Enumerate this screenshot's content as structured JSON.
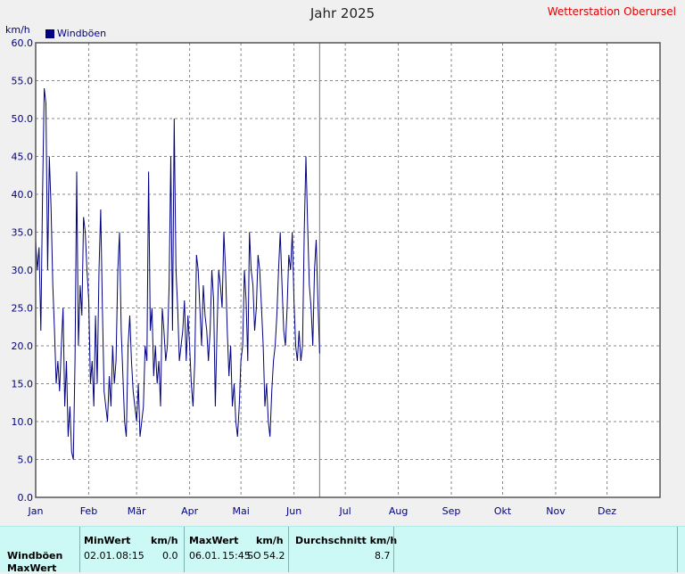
{
  "header": {
    "title": "Jahr 2025",
    "station": "Wetterstation Oberursel",
    "unit": "km/h"
  },
  "legend": {
    "label": "Windböen",
    "color": "#000080"
  },
  "chart_data": {
    "type": "line",
    "title": "Jahr 2025",
    "ylabel": "km/h",
    "ylim": [
      0,
      60
    ],
    "yticks": [
      "0.0",
      "5.0",
      "10.0",
      "15.0",
      "20.0",
      "25.0",
      "30.0",
      "35.0",
      "40.0",
      "45.0",
      "50.0",
      "55.0",
      "60.0"
    ],
    "months": [
      "Jan",
      "Feb",
      "Mär",
      "Apr",
      "Mai",
      "Jun",
      "Jul",
      "Aug",
      "Sep",
      "Okt",
      "Nov",
      "Dez"
    ],
    "grid": true,
    "current_day": 167,
    "series": [
      {
        "name": "Windböen",
        "color": "#000080",
        "x": [
          1,
          2,
          3,
          4,
          5,
          6,
          7,
          8,
          9,
          10,
          11,
          12,
          13,
          14,
          15,
          16,
          17,
          18,
          19,
          20,
          21,
          22,
          23,
          24,
          25,
          26,
          27,
          28,
          29,
          30,
          31,
          32,
          33,
          34,
          35,
          36,
          37,
          38,
          39,
          40,
          41,
          42,
          43,
          44,
          45,
          46,
          47,
          48,
          49,
          50,
          51,
          52,
          53,
          54,
          55,
          56,
          57,
          58,
          59,
          60,
          61,
          62,
          63,
          64,
          65,
          66,
          67,
          68,
          69,
          70,
          71,
          72,
          73,
          74,
          75,
          76,
          77,
          78,
          79,
          80,
          81,
          82,
          83,
          84,
          85,
          86,
          87,
          88,
          89,
          90,
          91,
          92,
          93,
          94,
          95,
          96,
          97,
          98,
          99,
          100,
          101,
          102,
          103,
          104,
          105,
          106,
          107,
          108,
          109,
          110,
          111,
          112,
          113,
          114,
          115,
          116,
          117,
          118,
          119,
          120,
          121,
          122,
          123,
          124,
          125,
          126,
          127,
          128,
          129,
          130,
          131,
          132,
          133,
          134,
          135,
          136,
          137,
          138,
          139,
          140,
          141,
          142,
          143,
          144,
          145,
          146,
          147,
          148,
          149,
          150,
          151,
          152,
          153,
          154,
          155,
          156,
          157,
          158,
          159,
          160,
          161,
          162,
          163,
          164,
          165,
          166,
          167
        ],
        "values": [
          34,
          30,
          33,
          22,
          40,
          54,
          52,
          30,
          45,
          38,
          28,
          22,
          15,
          18,
          14,
          20,
          25,
          12,
          18,
          8,
          12,
          6,
          5,
          18,
          43,
          20,
          28,
          24,
          37,
          35,
          30,
          26,
          15,
          18,
          12,
          24,
          15,
          30,
          38,
          25,
          14,
          12,
          10,
          16,
          12,
          20,
          15,
          18,
          30,
          35,
          22,
          16,
          10,
          8,
          20,
          24,
          18,
          14,
          12,
          10,
          15,
          8,
          10,
          12,
          20,
          18,
          43,
          22,
          25,
          16,
          20,
          15,
          18,
          12,
          25,
          22,
          18,
          20,
          28,
          45,
          22,
          50,
          30,
          25,
          18,
          20,
          22,
          26,
          18,
          24,
          20,
          15,
          12,
          18,
          32,
          30,
          25,
          20,
          28,
          24,
          22,
          18,
          22,
          30,
          26,
          12,
          22,
          30,
          28,
          25,
          35,
          30,
          22,
          16,
          20,
          12,
          15,
          10,
          8,
          12,
          18,
          20,
          30,
          26,
          18,
          35,
          30,
          28,
          22,
          25,
          32,
          30,
          25,
          20,
          12,
          15,
          10,
          8,
          14,
          18,
          20,
          24,
          30,
          35,
          28,
          22,
          20,
          25,
          32,
          30,
          35,
          26,
          20,
          18,
          22,
          18,
          20,
          35,
          45,
          36,
          28,
          25,
          20,
          30,
          34,
          26,
          19
        ]
      }
    ]
  },
  "table": {
    "row_labels": [
      "Windböen",
      "MaxWert"
    ],
    "headers": {
      "min": "MinWert",
      "min_unit": "km/h",
      "max": "MaxWert",
      "max_unit": "km/h",
      "avg": "Durchschnitt km/h"
    },
    "values": {
      "min_date": "02.01.",
      "min_time": "08:15",
      "min_value": "0.0",
      "max_date": "06.01.",
      "max_time": "15:45",
      "max_dir": "SO",
      "max_value": "54.2",
      "avg_value": "8.7"
    }
  }
}
